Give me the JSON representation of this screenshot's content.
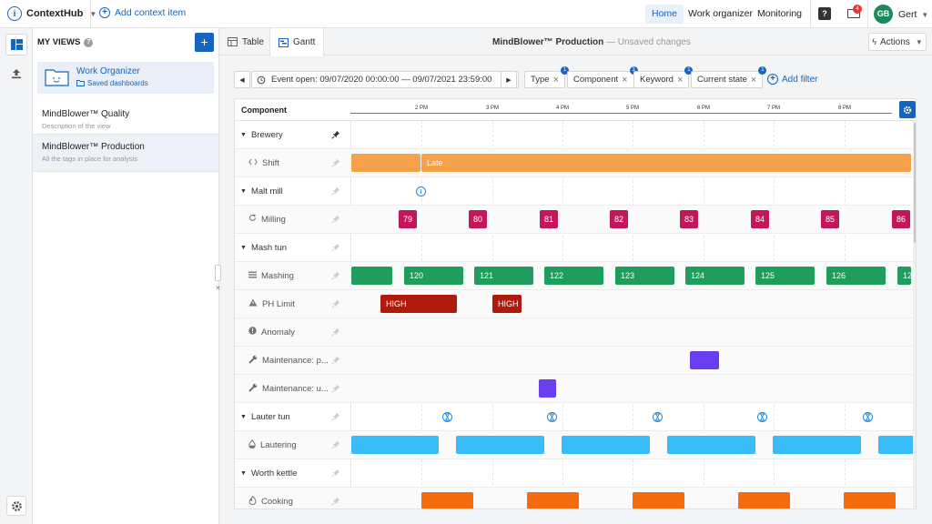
{
  "topbar": {
    "app_name": "ContextHub",
    "add_context_label": "Add context item",
    "nav": [
      "Home",
      "Work organizer",
      "Monitoring"
    ],
    "active_nav": "Home",
    "mail_badge": "4",
    "user_initials": "GB",
    "user_name": "Gert"
  },
  "sidebar": {
    "title": "MY VIEWS",
    "work_organizer": {
      "title": "Work Organizer",
      "subtitle": "Saved dashboards"
    },
    "views": [
      {
        "title": "MindBlower™ Quality",
        "description": "Description of the view"
      },
      {
        "title": "MindBlower™ Production",
        "description": "All the tags in place for analysis"
      }
    ]
  },
  "header": {
    "tabs": [
      "Table",
      "Gantt"
    ],
    "active_tab": "Gantt",
    "title": "MindBlower™ Production",
    "title_suffix": "— Unsaved changes",
    "actions_label": "Actions"
  },
  "filterbar": {
    "event_range": "Event open: 09/07/2020 00:00:00 — 09/07/2021 23:59:00",
    "chips": [
      {
        "label": "Type",
        "count": "1"
      },
      {
        "label": "Component",
        "count": "3"
      },
      {
        "label": "Keyword",
        "count": "1"
      },
      {
        "label": "Current state",
        "count": "1"
      }
    ],
    "add_filter_label": "Add filter"
  },
  "gantt": {
    "column_header": "Component",
    "time_ticks": [
      "2 PM",
      "3 PM",
      "4 PM",
      "5 PM",
      "6 PM",
      "7 PM",
      "8 PM"
    ],
    "rows": [
      {
        "label": "Brewery",
        "type": "group",
        "pinned": true
      },
      {
        "label": "Shift",
        "type": "child",
        "icon": "code-icon"
      },
      {
        "label": "Malt mill",
        "type": "group"
      },
      {
        "label": "Milling",
        "type": "child",
        "icon": "refresh-icon"
      },
      {
        "label": "Mash tun",
        "type": "group"
      },
      {
        "label": "Mashing",
        "type": "child",
        "icon": "list-icon"
      },
      {
        "label": "PH Limit",
        "type": "child",
        "icon": "warning-icon"
      },
      {
        "label": "Anomaly",
        "type": "child",
        "icon": "alert-circle-icon"
      },
      {
        "label": "Maintenance: p...",
        "type": "child",
        "icon": "wrench-icon"
      },
      {
        "label": "Maintenance: u...",
        "type": "child",
        "icon": "wrench-icon"
      },
      {
        "label": "Lauter tun",
        "type": "group"
      },
      {
        "label": "Lautering",
        "type": "child",
        "icon": "drop-icon"
      },
      {
        "label": "Worth kettle",
        "type": "group"
      },
      {
        "label": "Cooking",
        "type": "child",
        "icon": "flame-icon"
      }
    ],
    "shift_bar_label": "Late",
    "milling_labels": [
      "79",
      "80",
      "81",
      "82",
      "83",
      "84",
      "85",
      "86"
    ],
    "mashing_labels": [
      "",
      "120",
      "121",
      "122",
      "123",
      "124",
      "125",
      "126",
      "12"
    ],
    "ph_labels": [
      "HIGH",
      "HIGH"
    ],
    "colors": {
      "shift": "#f5a04a",
      "milling": "#c2185b",
      "mashing": "#1e9e5a",
      "ph": "#b01a0a",
      "maintenance": "#6a3ff0",
      "lautering": "#38bdf8",
      "cooking": "#f56b0f",
      "accent": "#1565c0"
    }
  }
}
